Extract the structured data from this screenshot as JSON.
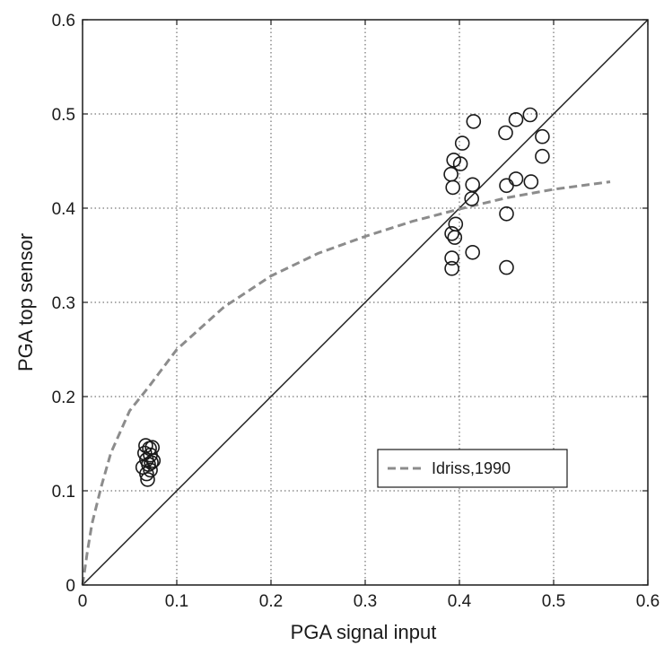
{
  "chart_data": {
    "type": "scatter",
    "xlabel": "PGA signal input",
    "ylabel": "PGA top sensor",
    "xlim": [
      0,
      0.6
    ],
    "ylim": [
      0,
      0.6
    ],
    "xticks": [
      0,
      0.1,
      0.2,
      0.3,
      0.4,
      0.5,
      0.6
    ],
    "yticks": [
      0,
      0.1,
      0.2,
      0.3,
      0.4,
      0.5,
      0.6
    ],
    "x_tick_labels": [
      "0",
      "0.1",
      "0.2",
      "0.3",
      "0.4",
      "0.5",
      "0.6"
    ],
    "y_tick_labels": [
      "0",
      "0.1",
      "0.2",
      "0.3",
      "0.4",
      "0.5",
      "0.6"
    ],
    "grid": true,
    "legend_position": "lower-right",
    "series": [
      {
        "type": "scatter",
        "marker": "circle-open",
        "color": "#1a1a1a",
        "points": [
          [
            0.064,
            0.125
          ],
          [
            0.066,
            0.14
          ],
          [
            0.067,
            0.148
          ],
          [
            0.068,
            0.133
          ],
          [
            0.068,
            0.118
          ],
          [
            0.069,
            0.112
          ],
          [
            0.07,
            0.128
          ],
          [
            0.071,
            0.145
          ],
          [
            0.072,
            0.138
          ],
          [
            0.072,
            0.122
          ],
          [
            0.073,
            0.13
          ],
          [
            0.074,
            0.146
          ],
          [
            0.075,
            0.132
          ],
          [
            0.391,
            0.436
          ],
          [
            0.393,
            0.422
          ],
          [
            0.394,
            0.451
          ],
          [
            0.392,
            0.373
          ],
          [
            0.395,
            0.369
          ],
          [
            0.396,
            0.383
          ],
          [
            0.392,
            0.347
          ],
          [
            0.392,
            0.336
          ],
          [
            0.401,
            0.447
          ],
          [
            0.403,
            0.469
          ],
          [
            0.413,
            0.41
          ],
          [
            0.414,
            0.425
          ],
          [
            0.414,
            0.353
          ],
          [
            0.415,
            0.492
          ],
          [
            0.449,
            0.48
          ],
          [
            0.45,
            0.424
          ],
          [
            0.45,
            0.394
          ],
          [
            0.45,
            0.337
          ],
          [
            0.46,
            0.494
          ],
          [
            0.46,
            0.431
          ],
          [
            0.475,
            0.499
          ],
          [
            0.476,
            0.428
          ],
          [
            0.488,
            0.476
          ],
          [
            0.488,
            0.455
          ]
        ]
      },
      {
        "type": "line",
        "name": "",
        "color": "#1a1a1a",
        "style": "solid",
        "points": [
          [
            0,
            0
          ],
          [
            0.6,
            0.6
          ]
        ]
      },
      {
        "type": "line",
        "name": "Idriss,1990",
        "color": "#8c8c8c",
        "style": "dashed",
        "points": [
          [
            0.0,
            0.0
          ],
          [
            0.005,
            0.035
          ],
          [
            0.01,
            0.065
          ],
          [
            0.02,
            0.105
          ],
          [
            0.03,
            0.14
          ],
          [
            0.05,
            0.185
          ],
          [
            0.07,
            0.21
          ],
          [
            0.1,
            0.25
          ],
          [
            0.15,
            0.295
          ],
          [
            0.2,
            0.328
          ],
          [
            0.25,
            0.352
          ],
          [
            0.3,
            0.37
          ],
          [
            0.35,
            0.386
          ],
          [
            0.4,
            0.399
          ],
          [
            0.45,
            0.411
          ],
          [
            0.5,
            0.42
          ],
          [
            0.56,
            0.428
          ]
        ]
      }
    ]
  }
}
